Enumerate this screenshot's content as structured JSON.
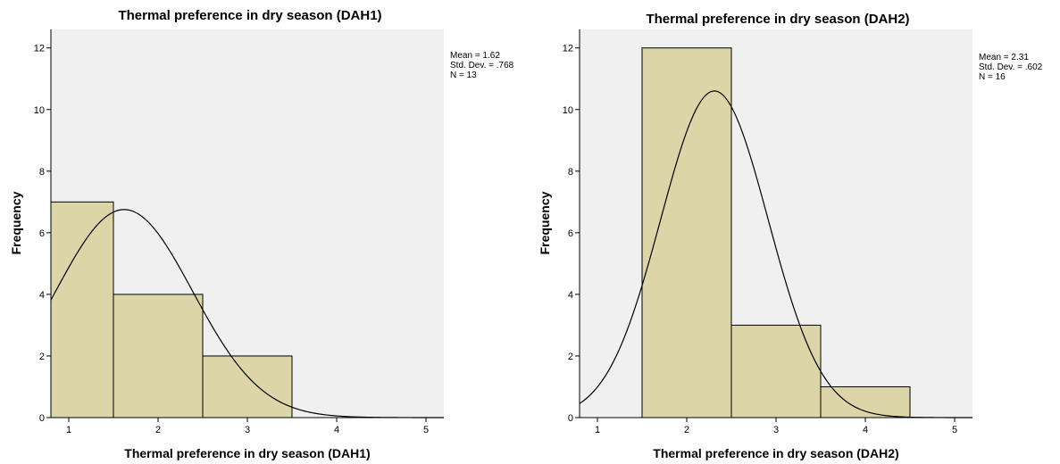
{
  "chart_data": [
    {
      "type": "bar",
      "title": "Thermal preference in dry season (DAH1)",
      "xlabel": "Thermal preference in dry season (DAH1)",
      "ylabel": "Frequency",
      "bins": [
        {
          "from": 0.5,
          "to": 1.5,
          "value": 7
        },
        {
          "from": 1.5,
          "to": 2.5,
          "value": 4
        },
        {
          "from": 2.5,
          "to": 3.5,
          "value": 2
        }
      ],
      "xlim": [
        0.8,
        5.2
      ],
      "ylim": [
        0,
        12.6
      ],
      "x_ticks": [
        "1",
        "2",
        "3",
        "4",
        "5"
      ],
      "y_ticks": [
        "0",
        "2",
        "4",
        "6",
        "8",
        "10",
        "12"
      ],
      "normal_curve": {
        "mean": 1.62,
        "std": 0.768,
        "n": 13,
        "bin_width": 1
      },
      "stats": [
        "Mean = 1.62",
        "Std. Dev. = .768",
        "N = 13"
      ],
      "bar_color": "#dcd5a8"
    },
    {
      "type": "bar",
      "title": "Thermal preference in dry season (DAH2)",
      "xlabel": "Thermal preference in dry season (DAH2)",
      "ylabel": "Frequency",
      "bins": [
        {
          "from": 1.5,
          "to": 2.5,
          "value": 12
        },
        {
          "from": 2.5,
          "to": 3.5,
          "value": 3
        },
        {
          "from": 3.5,
          "to": 4.5,
          "value": 1
        }
      ],
      "xlim": [
        0.8,
        5.2
      ],
      "ylim": [
        0,
        12.6
      ],
      "x_ticks": [
        "1",
        "2",
        "3",
        "4",
        "5"
      ],
      "y_ticks": [
        "0",
        "2",
        "4",
        "6",
        "8",
        "10",
        "12"
      ],
      "normal_curve": {
        "mean": 2.31,
        "std": 0.602,
        "n": 16,
        "bin_width": 1
      },
      "stats": [
        "Mean = 2.31",
        "Std. Dev. = .602",
        "N = 16"
      ],
      "bar_color": "#dcd5a8"
    }
  ]
}
